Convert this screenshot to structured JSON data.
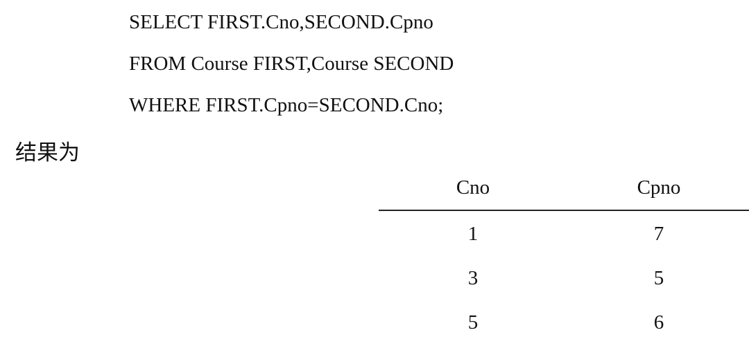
{
  "sql": [
    "SELECT FIRST.Cno,SECOND.Cpno",
    "FROM Course FIRST,Course SECOND",
    "WHERE FIRST.Cpno=SECOND.Cno;"
  ],
  "result_label": "结果为",
  "table": {
    "headers": [
      "Cno",
      "Cpno"
    ],
    "rows": [
      [
        "1",
        "7"
      ],
      [
        "3",
        "5"
      ],
      [
        "5",
        "6"
      ]
    ]
  }
}
